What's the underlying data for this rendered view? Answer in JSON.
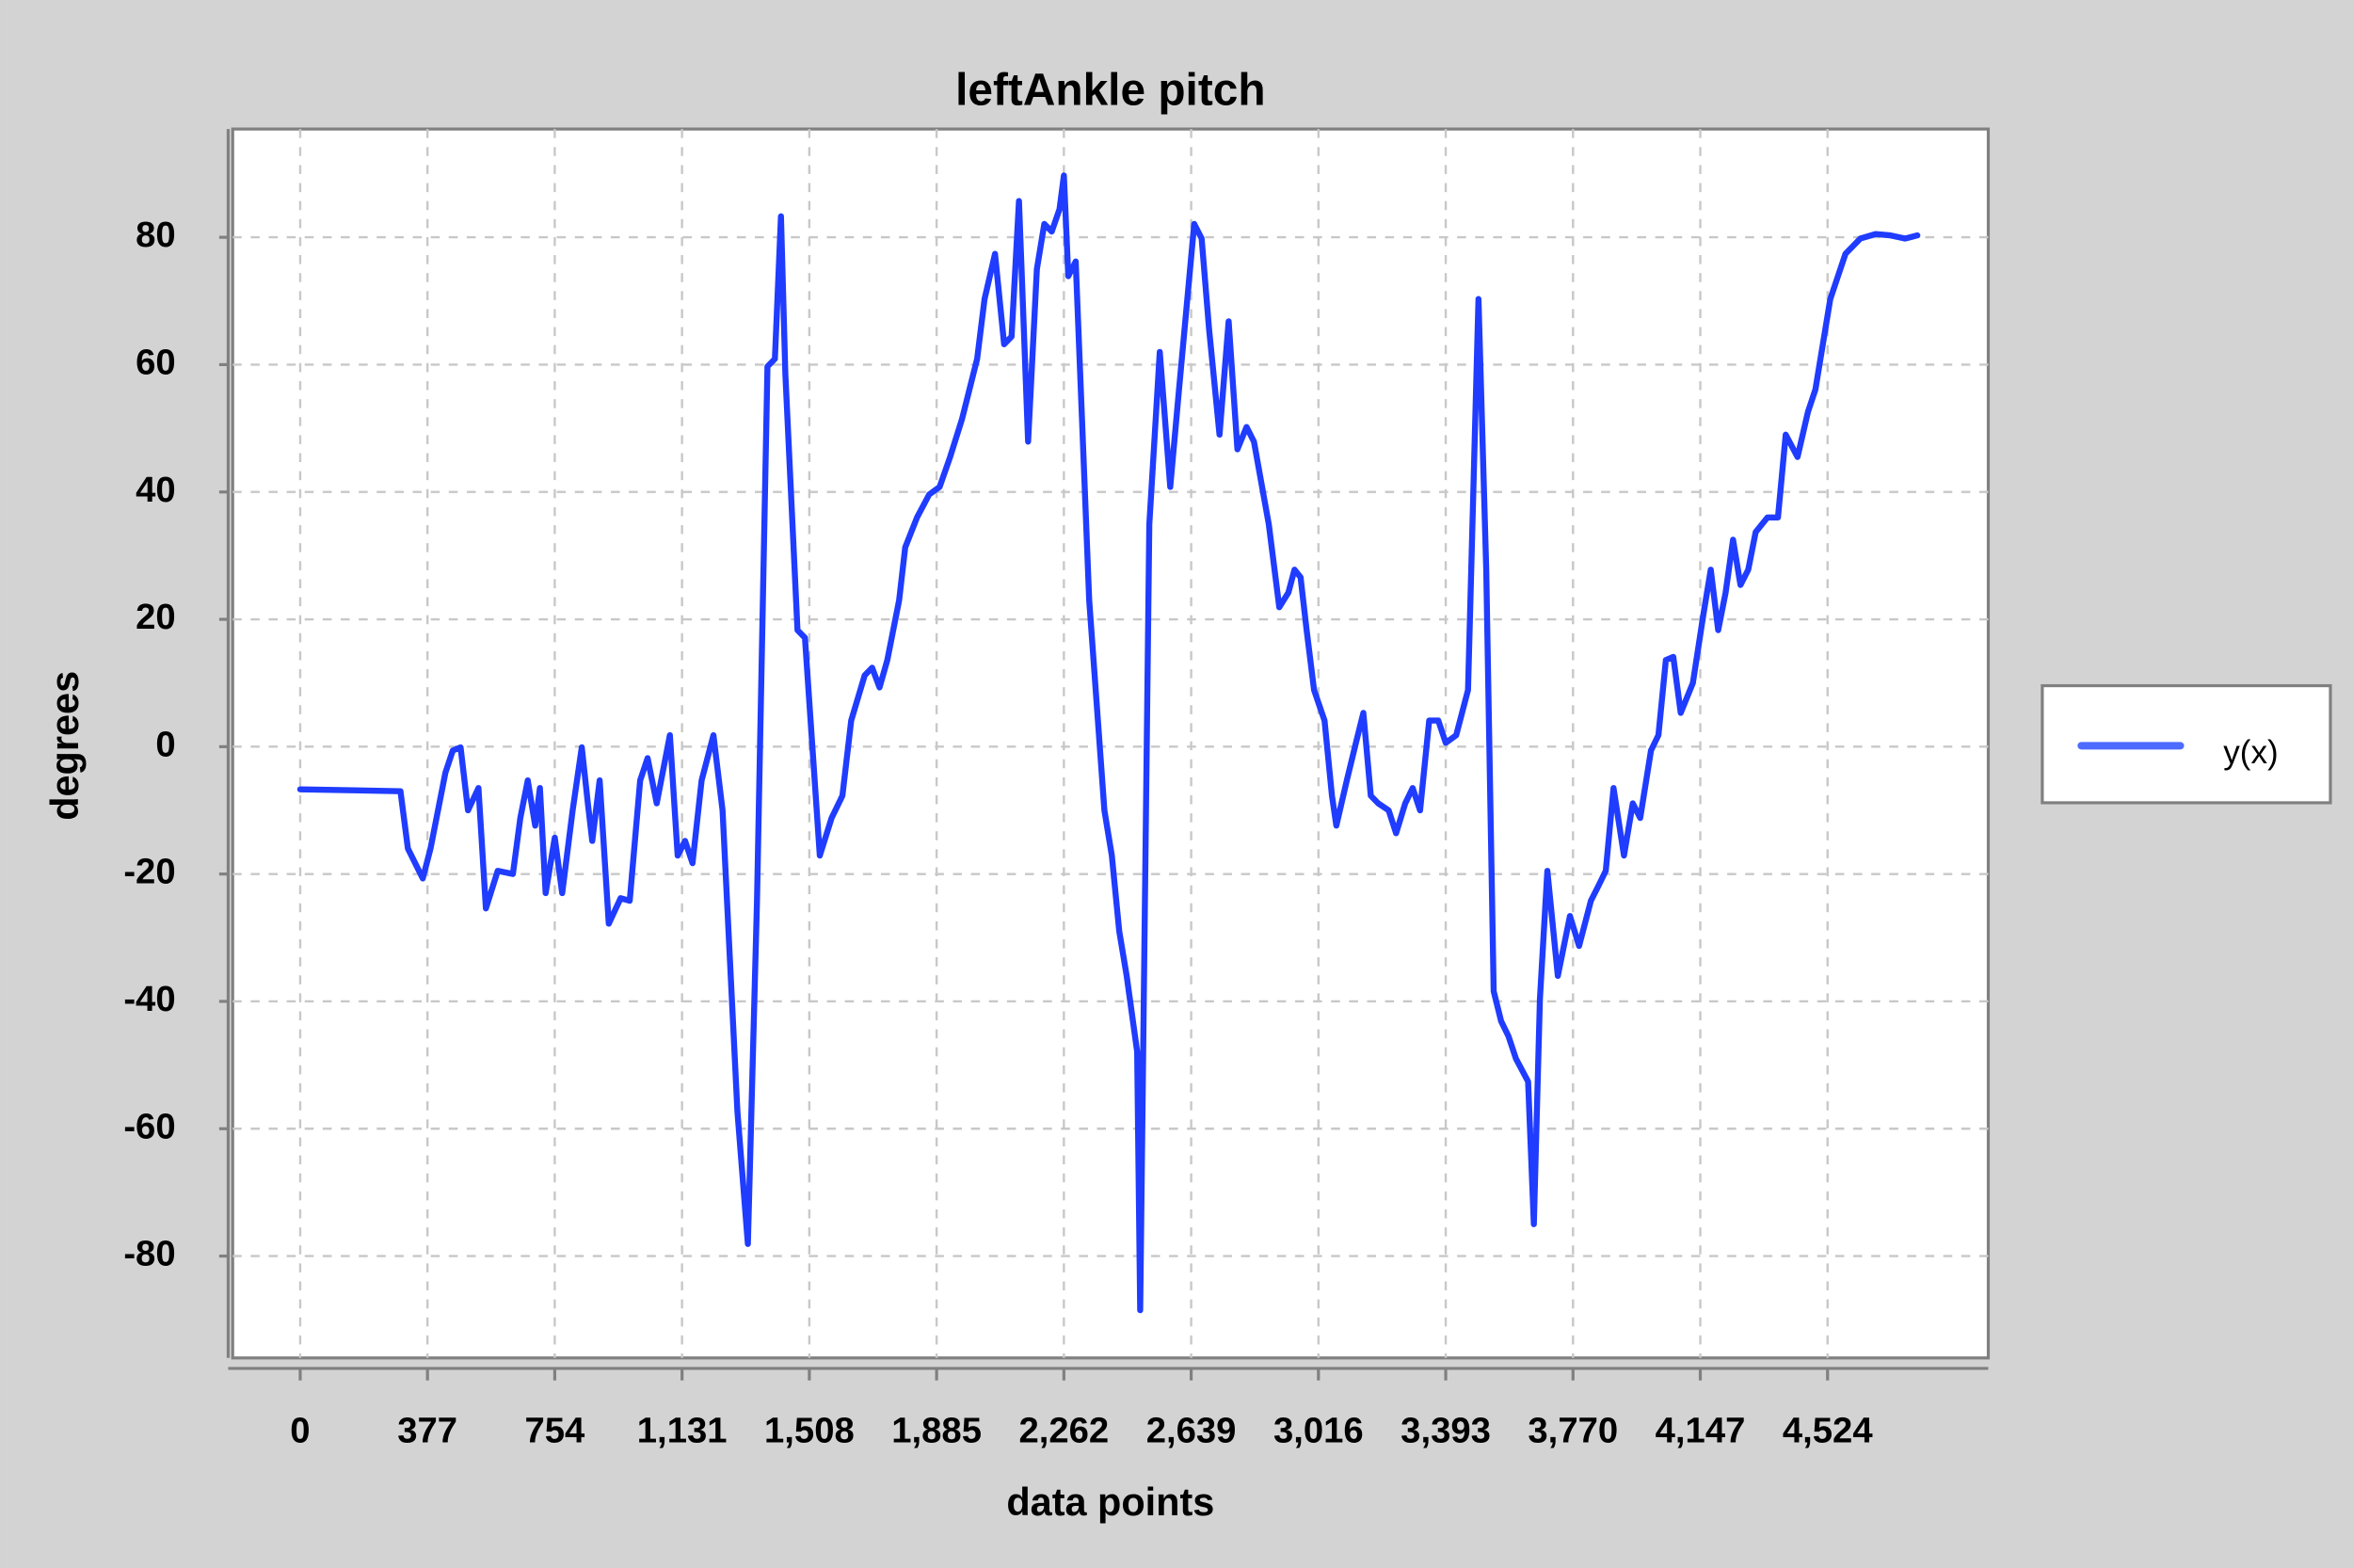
{
  "chart_data": {
    "type": "line",
    "title": "leftAnkle pitch",
    "x_label": "data points",
    "y_label": "degrees",
    "xlim": [
      -200,
      5000
    ],
    "ylim": [
      -96,
      97
    ],
    "xticks": [
      0,
      377,
      754,
      {
        "value": 1131,
        "label": "1,131"
      },
      {
        "value": 1508,
        "label": "1,508"
      },
      {
        "value": 1885,
        "label": "1,885"
      },
      {
        "value": 2262,
        "label": "2,262"
      },
      {
        "value": 2639,
        "label": "2,639"
      },
      {
        "value": 3016,
        "label": "3,016"
      },
      {
        "value": 3393,
        "label": "3,393"
      },
      {
        "value": 3770,
        "label": "3,770"
      },
      {
        "value": 4147,
        "label": "4,147"
      },
      {
        "value": 4524,
        "label": "4,524"
      }
    ],
    "yticks": [
      -80,
      -60,
      -40,
      -20,
      0,
      20,
      40,
      60,
      80
    ],
    "grid": true,
    "legend": "right",
    "x": [
      0,
      297,
      319,
      363,
      386,
      430,
      452,
      475,
      497,
      528,
      550,
      585,
      630,
      652,
      674,
      696,
      710,
      727,
      754,
      776,
      807,
      834,
      852,
      865,
      887,
      914,
      949,
      976,
      1007,
      1029,
      1056,
      1095,
      1118,
      1140,
      1162,
      1189,
      1224,
      1251,
      1295,
      1326,
      1353,
      1384,
      1406,
      1424,
      1437,
      1473,
      1495,
      1539,
      1574,
      1606,
      1632,
      1672,
      1694,
      1716,
      1739,
      1774,
      1792,
      1827,
      1863,
      1894,
      1925,
      1960,
      2005,
      2027,
      2058,
      2085,
      2107,
      2129,
      2156,
      2182,
      2204,
      2226,
      2249,
      2262,
      2275,
      2297,
      2337,
      2382,
      2404,
      2426,
      2448,
      2479,
      2488,
      2515,
      2546,
      2577,
      2603,
      2648,
      2670,
      2692,
      2723,
      2750,
      2776,
      2803,
      2825,
      2869,
      2900,
      2927,
      2945,
      2963,
      2981,
      3003,
      3034,
      3056,
      3069,
      3100,
      3127,
      3149,
      3171,
      3193,
      3224,
      3246,
      3273,
      3295,
      3317,
      3344,
      3371,
      3393,
      3424,
      3459,
      3490,
      3513,
      3535,
      3557,
      3579,
      3601,
      3637,
      3654,
      3672,
      3694,
      3725,
      3761,
      3788,
      3823,
      3845,
      3867,
      3890,
      3921,
      3947,
      3969,
      4001,
      4023,
      4045,
      4067,
      4089,
      4125,
      4156,
      4178,
      4200,
      4222,
      4244,
      4266,
      4289,
      4311,
      4346,
      4377,
      4400,
      4435,
      4466,
      4488,
      4510,
      4532,
      4577,
      4621,
      4666,
      4710,
      4754,
      4790
    ],
    "series": [
      {
        "name": "y(x)",
        "color": "#1f3cff",
        "legend_color": "#4d6bff",
        "values": [
          -6.7,
          -7.0,
          -16.0,
          -20.7,
          -16.0,
          -4.1,
          -0.6,
          -0.1,
          -10.0,
          -6.5,
          -25.4,
          -19.5,
          -20.0,
          -11.2,
          -5.3,
          -12.4,
          -6.5,
          -23.0,
          -14.3,
          -23.0,
          -10.0,
          -0.1,
          -8.9,
          -14.8,
          -5.3,
          -27.8,
          -23.8,
          -24.2,
          -5.3,
          -1.8,
          -8.9,
          1.8,
          -17.1,
          -14.8,
          -18.3,
          -5.3,
          1.8,
          -10.0,
          -57.3,
          -78.1,
          -24.2,
          59.7,
          60.9,
          83.3,
          58.5,
          18.3,
          17.1,
          -17.1,
          -11.2,
          -7.7,
          4.1,
          11.2,
          12.4,
          9.3,
          13.6,
          23.0,
          31.3,
          36.0,
          39.6,
          40.8,
          45.5,
          51.4,
          60.9,
          70.3,
          77.4,
          63.2,
          64.4,
          85.7,
          47.9,
          75.0,
          82.1,
          80.9,
          84.4,
          89.7,
          73.9,
          76.2,
          23.0,
          -10.0,
          -17.1,
          -29.0,
          -36.0,
          -47.9,
          -88.5,
          34.9,
          62.0,
          40.8,
          56.1,
          82.1,
          79.8,
          65.6,
          49.0,
          66.8,
          46.7,
          50.2,
          47.9,
          34.9,
          21.9,
          24.2,
          27.8,
          26.6,
          18.3,
          8.9,
          4.1,
          -7.7,
          -12.4,
          -5.3,
          0.6,
          5.3,
          -7.7,
          -8.9,
          -10.0,
          -13.6,
          -8.9,
          -6.5,
          -10.0,
          4.1,
          4.1,
          0.6,
          1.8,
          8.9,
          70.3,
          27.8,
          -38.4,
          -43.1,
          -45.5,
          -49.0,
          -52.6,
          -75.0,
          -39.6,
          -19.5,
          -36.0,
          -26.6,
          -31.3,
          -24.2,
          -21.9,
          -19.5,
          -6.5,
          -17.1,
          -8.9,
          -11.2,
          -0.6,
          1.8,
          13.6,
          14.1,
          5.3,
          10.0,
          20.7,
          27.8,
          18.3,
          24.2,
          32.5,
          25.4,
          27.8,
          33.7,
          36.0,
          36.0,
          49.0,
          45.5,
          52.6,
          56.1,
          63.2,
          70.3,
          77.4,
          79.8,
          80.5,
          80.3,
          79.8,
          80.3
        ]
      }
    ]
  }
}
